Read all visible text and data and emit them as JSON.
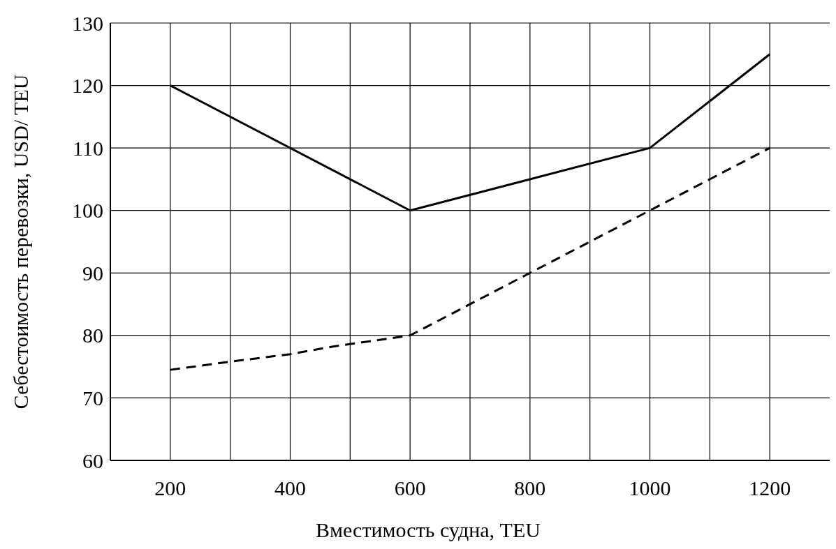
{
  "chart_data": {
    "type": "line",
    "xlabel": "Вместимость судна, TEU",
    "ylabel": "Себестоимость перевозки, USD/ TEU",
    "xlim": [
      100,
      1300
    ],
    "ylim": [
      60,
      130
    ],
    "xticks": [
      200,
      {
        "value": 300,
        "label": null
      },
      400,
      {
        "value": 500,
        "label": null
      },
      600,
      {
        "value": 700,
        "label": null
      },
      800,
      {
        "value": 900,
        "label": null
      },
      1000,
      {
        "value": 1100,
        "label": null
      },
      1200
    ],
    "yticks": [
      60,
      70,
      80,
      90,
      100,
      110,
      120,
      130
    ],
    "grid": true,
    "series": [
      {
        "color": "#000000",
        "line_style": "solid",
        "x": [
          200,
          600,
          1000,
          1200
        ],
        "values": [
          120,
          100,
          110,
          125
        ]
      },
      {
        "color": "#000000",
        "line_style": "dashed",
        "x": [
          200,
          300,
          400,
          470,
          600,
          800,
          1000,
          1200
        ],
        "values": [
          74.5,
          75.8,
          77,
          78.2,
          80,
          90,
          100,
          110
        ]
      }
    ]
  }
}
